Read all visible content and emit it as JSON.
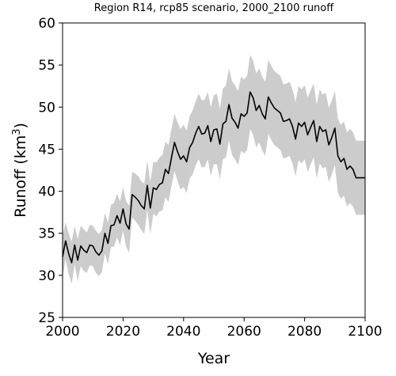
{
  "chart_data": {
    "type": "line",
    "title": "Region R14, rcp85 scenario, 2000_2100 runoff",
    "xlabel": "Year",
    "ylabel_main": "Runoff (km",
    "ylabel_sup": "3",
    "ylabel_end": ")",
    "xlim": [
      2000,
      2100
    ],
    "ylim": [
      25,
      60
    ],
    "xticks": [
      2000,
      2020,
      2040,
      2060,
      2080,
      2100
    ],
    "yticks": [
      25,
      30,
      35,
      40,
      45,
      50,
      55,
      60
    ],
    "grid": false,
    "line_color": "#000000",
    "band_color": "#cccccc",
    "series": [
      {
        "x": [
          2000,
          2001,
          2002,
          2003,
          2004,
          2005,
          2006,
          2007,
          2008,
          2009,
          2010,
          2011,
          2012,
          2013,
          2014,
          2015,
          2016,
          2017,
          2018,
          2019,
          2020,
          2021,
          2022,
          2023,
          2024,
          2025,
          2026,
          2027,
          2028,
          2029,
          2030,
          2031,
          2032,
          2033,
          2034,
          2035,
          2036,
          2037,
          2038,
          2039,
          2040,
          2041,
          2042,
          2043,
          2044,
          2045,
          2046,
          2047,
          2048,
          2049,
          2050,
          2051,
          2052,
          2053,
          2054,
          2055,
          2056,
          2057,
          2058,
          2059,
          2060,
          2061,
          2062,
          2063,
          2064,
          2065,
          2066,
          2067,
          2068,
          2069,
          2070,
          2071,
          2072,
          2073,
          2074,
          2075,
          2076,
          2077,
          2078,
          2079,
          2080,
          2081,
          2082,
          2083,
          2084,
          2085,
          2086,
          2087,
          2088,
          2089,
          2090,
          2091,
          2092,
          2093,
          2094,
          2095,
          2096,
          2097,
          2098,
          2099,
          2100
        ],
        "values": [
          32.2,
          34.1,
          32.6,
          31.5,
          33.6,
          31.8,
          33.5,
          33.0,
          32.7,
          33.6,
          33.5,
          32.8,
          32.4,
          32.9,
          35.0,
          33.8,
          35.9,
          36.0,
          37.1,
          36.2,
          37.9,
          36.1,
          35.5,
          39.6,
          39.3,
          38.9,
          38.3,
          37.9,
          40.7,
          38.0,
          40.4,
          40.2,
          40.8,
          41.0,
          42.6,
          42.1,
          44.0,
          45.8,
          44.7,
          43.8,
          44.2,
          43.5,
          45.2,
          45.8,
          46.9,
          47.7,
          46.8,
          46.9,
          47.8,
          45.9,
          47.3,
          47.4,
          45.6,
          48.0,
          48.3,
          50.3,
          48.7,
          48.2,
          47.5,
          49.2,
          48.9,
          49.3,
          51.8,
          51.1,
          49.6,
          50.2,
          49.2,
          48.6,
          51.2,
          50.5,
          49.9,
          49.6,
          49.3,
          48.3,
          48.4,
          48.6,
          47.7,
          46.2,
          48.1,
          47.7,
          48.2,
          46.7,
          47.6,
          48.4,
          45.9,
          47.7,
          47.1,
          47.3,
          45.5,
          46.4,
          47.5,
          44.2,
          43.5,
          43.9,
          42.6,
          43.0,
          42.6,
          41.6,
          41.6,
          41.6,
          41.6
        ],
        "upper": [
          34.7,
          36.3,
          35.0,
          34.0,
          35.9,
          34.3,
          35.9,
          35.5,
          35.1,
          36.0,
          35.9,
          35.3,
          34.9,
          35.4,
          37.4,
          36.3,
          38.4,
          38.6,
          39.7,
          38.8,
          40.5,
          38.8,
          38.3,
          42.3,
          42.1,
          41.8,
          41.2,
          40.9,
          43.6,
          41.1,
          43.5,
          43.4,
          44.0,
          44.3,
          45.9,
          45.5,
          47.4,
          49.2,
          48.2,
          47.4,
          47.9,
          47.2,
          48.9,
          49.6,
          50.7,
          51.6,
          50.8,
          50.9,
          51.8,
          50.0,
          51.4,
          51.6,
          49.8,
          52.2,
          52.6,
          54.6,
          53.1,
          52.6,
          51.9,
          53.6,
          53.3,
          53.7,
          56.2,
          55.5,
          54.0,
          54.6,
          53.6,
          53.0,
          55.6,
          54.9,
          54.3,
          54.0,
          53.7,
          52.7,
          52.8,
          53.0,
          52.1,
          50.6,
          52.5,
          52.1,
          52.6,
          51.1,
          52.0,
          52.8,
          50.3,
          52.1,
          51.5,
          51.7,
          49.9,
          50.8,
          51.9,
          48.6,
          47.9,
          48.3,
          47.0,
          47.4,
          47.0,
          46.0,
          46.0,
          46.0,
          46.0
        ],
        "lower": [
          29.7,
          31.9,
          30.2,
          29.0,
          31.3,
          29.3,
          31.1,
          30.5,
          30.3,
          31.2,
          31.1,
          30.3,
          29.9,
          30.4,
          32.6,
          31.3,
          33.4,
          33.4,
          34.5,
          33.6,
          35.3,
          33.4,
          32.7,
          36.9,
          36.5,
          36.0,
          35.4,
          34.9,
          37.8,
          34.9,
          37.3,
          37.0,
          37.6,
          37.7,
          39.3,
          38.7,
          40.6,
          42.4,
          41.2,
          40.2,
          40.5,
          39.8,
          41.5,
          42.0,
          43.1,
          43.8,
          42.8,
          42.9,
          43.8,
          41.8,
          43.2,
          43.2,
          41.4,
          43.8,
          44.0,
          46.0,
          44.3,
          43.8,
          43.1,
          44.8,
          44.5,
          44.9,
          47.4,
          46.7,
          45.2,
          45.8,
          44.8,
          44.2,
          46.8,
          46.1,
          45.5,
          45.2,
          44.9,
          43.9,
          44.0,
          44.2,
          43.3,
          41.8,
          43.7,
          43.3,
          43.8,
          42.3,
          43.2,
          44.0,
          41.5,
          43.3,
          42.7,
          42.9,
          41.1,
          42.0,
          43.1,
          39.8,
          39.1,
          39.5,
          38.2,
          38.6,
          38.2,
          37.2,
          37.2,
          37.2,
          37.2
        ]
      }
    ]
  }
}
